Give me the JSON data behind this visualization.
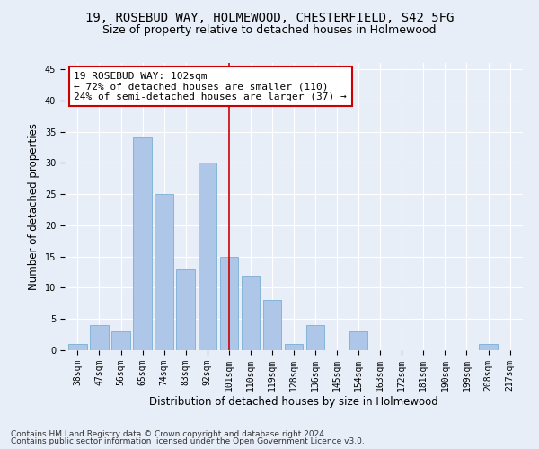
{
  "title_line1": "19, ROSEBUD WAY, HOLMEWOOD, CHESTERFIELD, S42 5FG",
  "title_line2": "Size of property relative to detached houses in Holmewood",
  "xlabel": "Distribution of detached houses by size in Holmewood",
  "ylabel": "Number of detached properties",
  "categories": [
    "38sqm",
    "47sqm",
    "56sqm",
    "65sqm",
    "74sqm",
    "83sqm",
    "92sqm",
    "101sqm",
    "110sqm",
    "119sqm",
    "128sqm",
    "136sqm",
    "145sqm",
    "154sqm",
    "163sqm",
    "172sqm",
    "181sqm",
    "190sqm",
    "199sqm",
    "208sqm",
    "217sqm"
  ],
  "values": [
    1,
    4,
    3,
    34,
    25,
    13,
    30,
    15,
    12,
    8,
    1,
    4,
    0,
    3,
    0,
    0,
    0,
    0,
    0,
    1,
    0
  ],
  "bar_color": "#aec6e8",
  "bar_edge_color": "#7aaed4",
  "vline_x": 7,
  "vline_color": "#cc0000",
  "annotation_line1": "19 ROSEBUD WAY: 102sqm",
  "annotation_line2": "← 72% of detached houses are smaller (110)",
  "annotation_line3": "24% of semi-detached houses are larger (37) →",
  "annotation_box_color": "#ffffff",
  "annotation_box_edge": "#cc0000",
  "ylim": [
    0,
    46
  ],
  "yticks": [
    0,
    5,
    10,
    15,
    20,
    25,
    30,
    35,
    40,
    45
  ],
  "background_color": "#e8eef8",
  "grid_color": "#ffffff",
  "footnote1": "Contains HM Land Registry data © Crown copyright and database right 2024.",
  "footnote2": "Contains public sector information licensed under the Open Government Licence v3.0.",
  "title_fontsize": 10,
  "subtitle_fontsize": 9,
  "axis_label_fontsize": 8.5,
  "tick_fontsize": 7,
  "annotation_fontsize": 8,
  "footnote_fontsize": 6.5
}
